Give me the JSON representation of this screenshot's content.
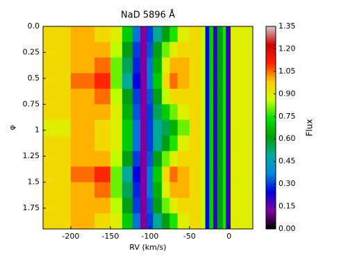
{
  "chart_data": {
    "type": "heatmap",
    "title": "NaD 5896 Å",
    "xlabel": "RV (km/s)",
    "ylabel": "φ",
    "colorbar_label": "Flux",
    "xbins": [
      -235,
      -200,
      -170,
      -150,
      -135,
      -122,
      -112,
      -104,
      -96,
      -85,
      -75,
      -65,
      -50,
      -35,
      -30,
      -25,
      -20,
      -15,
      -8,
      -4,
      2,
      30
    ],
    "ybins": [
      0,
      0.15,
      0.3,
      0.45,
      0.6,
      0.75,
      0.9,
      1.05,
      1.2,
      1.35,
      1.5,
      1.65,
      1.8,
      1.95
    ],
    "z": [
      [
        0.95,
        1.0,
        0.95,
        0.9,
        0.7,
        0.35,
        0.12,
        0.3,
        0.5,
        0.6,
        0.75,
        0.9,
        0.95,
        0.85,
        0.25,
        0.7,
        0.2,
        0.6,
        0.75,
        0.2,
        0.9
      ],
      [
        0.95,
        1.0,
        1.0,
        0.85,
        0.6,
        0.3,
        0.12,
        0.32,
        0.6,
        0.8,
        0.9,
        0.95,
        0.95,
        0.85,
        0.25,
        0.7,
        0.2,
        0.6,
        0.75,
        0.2,
        0.9
      ],
      [
        0.95,
        1.0,
        1.05,
        0.8,
        0.55,
        0.28,
        0.12,
        0.35,
        0.65,
        0.9,
        1.0,
        1.0,
        0.95,
        0.85,
        0.25,
        0.7,
        0.2,
        0.6,
        0.75,
        0.2,
        0.9
      ],
      [
        0.95,
        1.05,
        1.1,
        0.8,
        0.5,
        0.25,
        0.12,
        0.35,
        0.7,
        0.95,
        1.05,
        1.0,
        0.95,
        0.85,
        0.25,
        0.7,
        0.2,
        0.6,
        0.75,
        0.2,
        0.9
      ],
      [
        0.95,
        1.0,
        1.05,
        0.85,
        0.6,
        0.3,
        0.12,
        0.32,
        0.6,
        0.85,
        0.95,
        0.95,
        0.95,
        0.85,
        0.25,
        0.7,
        0.2,
        0.6,
        0.75,
        0.2,
        0.9
      ],
      [
        0.95,
        1.0,
        1.0,
        0.9,
        0.65,
        0.32,
        0.12,
        0.3,
        0.55,
        0.7,
        0.8,
        0.9,
        0.95,
        0.85,
        0.25,
        0.7,
        0.2,
        0.6,
        0.75,
        0.2,
        0.9
      ],
      [
        0.9,
        1.0,
        0.95,
        0.9,
        0.7,
        0.35,
        0.12,
        0.3,
        0.5,
        0.55,
        0.65,
        0.8,
        0.95,
        0.85,
        0.25,
        0.7,
        0.2,
        0.6,
        0.75,
        0.2,
        0.9
      ],
      [
        0.95,
        1.0,
        0.95,
        0.9,
        0.7,
        0.35,
        0.12,
        0.3,
        0.5,
        0.6,
        0.75,
        0.9,
        0.95,
        0.85,
        0.25,
        0.7,
        0.2,
        0.6,
        0.75,
        0.2,
        0.9
      ],
      [
        0.95,
        1.0,
        1.0,
        0.85,
        0.6,
        0.3,
        0.12,
        0.32,
        0.6,
        0.8,
        0.9,
        0.95,
        0.95,
        0.85,
        0.25,
        0.7,
        0.2,
        0.6,
        0.75,
        0.2,
        0.9
      ],
      [
        0.95,
        1.05,
        1.1,
        0.8,
        0.5,
        0.25,
        0.12,
        0.35,
        0.7,
        0.95,
        1.05,
        1.0,
        0.95,
        0.85,
        0.25,
        0.7,
        0.2,
        0.6,
        0.75,
        0.2,
        0.9
      ],
      [
        0.95,
        1.0,
        1.05,
        0.8,
        0.55,
        0.28,
        0.12,
        0.35,
        0.65,
        0.9,
        1.0,
        1.0,
        0.95,
        0.85,
        0.25,
        0.7,
        0.2,
        0.6,
        0.75,
        0.2,
        0.9
      ],
      [
        0.95,
        1.0,
        1.0,
        0.85,
        0.6,
        0.3,
        0.12,
        0.32,
        0.6,
        0.8,
        0.9,
        0.95,
        0.95,
        0.85,
        0.25,
        0.7,
        0.2,
        0.6,
        0.75,
        0.2,
        0.9
      ],
      [
        0.95,
        1.0,
        0.95,
        0.9,
        0.7,
        0.35,
        0.12,
        0.3,
        0.5,
        0.6,
        0.75,
        0.9,
        0.95,
        0.85,
        0.25,
        0.7,
        0.2,
        0.6,
        0.75,
        0.2,
        0.9
      ]
    ],
    "xlim": [
      -235,
      30
    ],
    "xticks": [
      -200,
      -150,
      -100,
      -50,
      0
    ],
    "ylim": [
      0,
      1.95
    ],
    "yticks": [
      {
        "value": 0,
        "label": "0.0"
      },
      0.25,
      0.5,
      0.75,
      1,
      1.25,
      1.5,
      1.75
    ],
    "clim": [
      0,
      1.35
    ],
    "cticks": [
      {
        "value": 0,
        "label": "0.00"
      },
      0.15,
      {
        "value": 0.3,
        "label": "0.30"
      },
      0.45,
      {
        "value": 0.6,
        "label": "0.60"
      },
      0.75,
      {
        "value": 0.9,
        "label": "0.90"
      },
      1.05,
      {
        "value": 1.2,
        "label": "1.20"
      },
      1.35
    ],
    "colormap": [
      "#000000",
      "#8200a0",
      "#0000dd",
      "#0088dd",
      "#00aaa0",
      "#009f00",
      "#00e000",
      "#ccff00",
      "#ffcc00",
      "#ff2000",
      "#d00000",
      "#cccccc"
    ]
  }
}
